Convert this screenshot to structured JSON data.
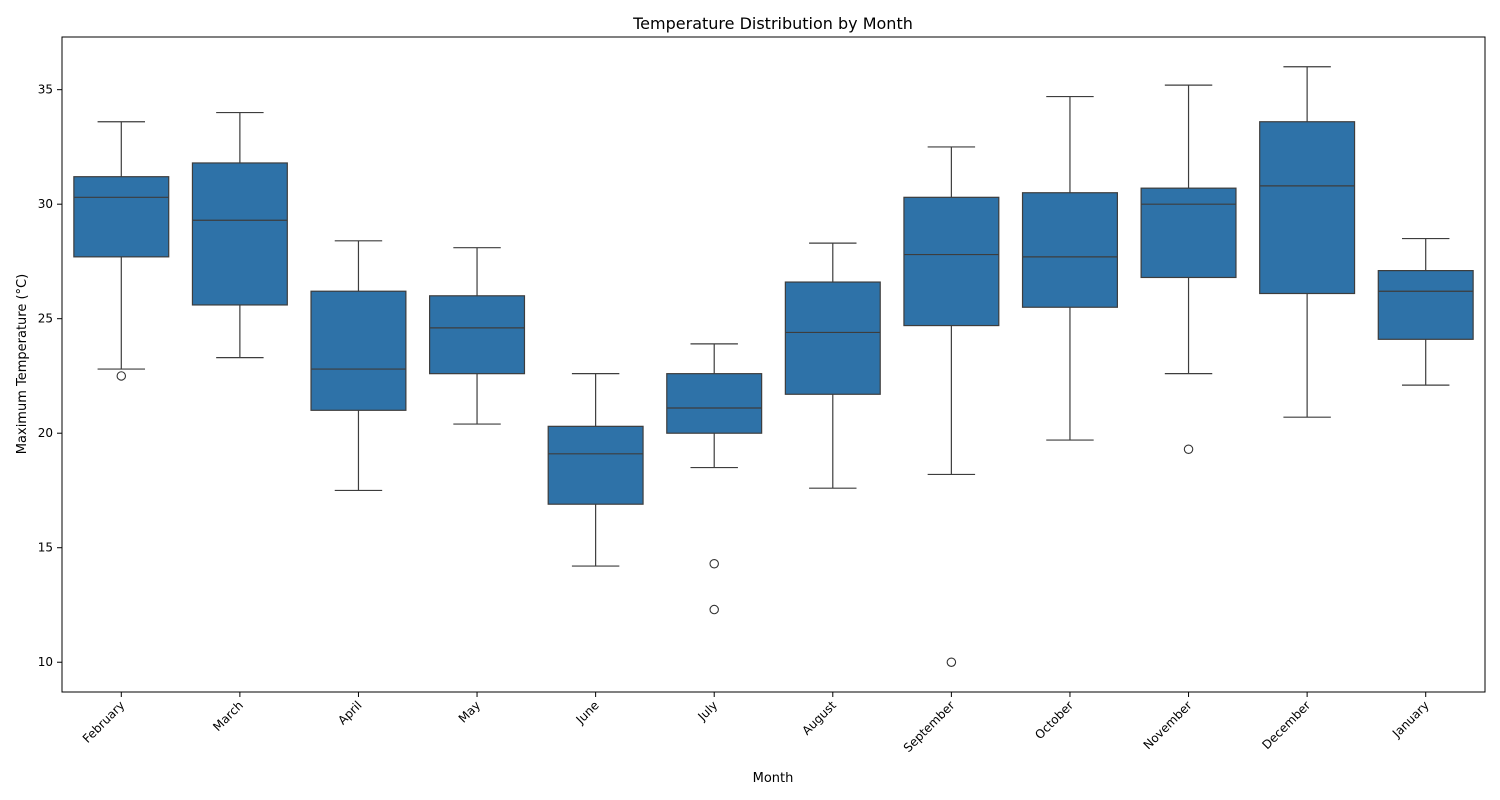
{
  "chart_data": {
    "type": "box",
    "title": "Temperature Distribution by Month",
    "xlabel": "Month",
    "ylabel": "Maximum Temperature (°C)",
    "ylim": [
      8.7,
      37.3
    ],
    "yticks": [
      10,
      15,
      20,
      25,
      30,
      35
    ],
    "grid": false,
    "legend": "none",
    "box_color": "#2e72a8",
    "line_color": "#3d3d3d",
    "categories": [
      "February",
      "March",
      "April",
      "May",
      "June",
      "July",
      "August",
      "September",
      "October",
      "November",
      "December",
      "January"
    ],
    "boxes": [
      {
        "whisker_low": 22.8,
        "q1": 27.7,
        "median": 30.3,
        "q3": 31.2,
        "whisker_high": 33.6,
        "outliers": [
          22.5
        ]
      },
      {
        "whisker_low": 23.3,
        "q1": 25.6,
        "median": 29.3,
        "q3": 31.8,
        "whisker_high": 34.0,
        "outliers": []
      },
      {
        "whisker_low": 17.5,
        "q1": 21.0,
        "median": 22.8,
        "q3": 26.2,
        "whisker_high": 28.4,
        "outliers": []
      },
      {
        "whisker_low": 20.4,
        "q1": 22.6,
        "median": 24.6,
        "q3": 26.0,
        "whisker_high": 28.1,
        "outliers": []
      },
      {
        "whisker_low": 14.2,
        "q1": 16.9,
        "median": 19.1,
        "q3": 20.3,
        "whisker_high": 22.6,
        "outliers": []
      },
      {
        "whisker_low": 18.5,
        "q1": 20.0,
        "median": 21.1,
        "q3": 22.6,
        "whisker_high": 23.9,
        "outliers": [
          14.3,
          12.3
        ]
      },
      {
        "whisker_low": 17.6,
        "q1": 21.7,
        "median": 24.4,
        "q3": 26.6,
        "whisker_high": 28.3,
        "outliers": []
      },
      {
        "whisker_low": 18.2,
        "q1": 24.7,
        "median": 27.8,
        "q3": 30.3,
        "whisker_high": 32.5,
        "outliers": [
          10.0
        ]
      },
      {
        "whisker_low": 19.7,
        "q1": 25.5,
        "median": 27.7,
        "q3": 30.5,
        "whisker_high": 34.7,
        "outliers": []
      },
      {
        "whisker_low": 22.6,
        "q1": 26.8,
        "median": 30.0,
        "q3": 30.7,
        "whisker_high": 35.2,
        "outliers": [
          19.3
        ]
      },
      {
        "whisker_low": 20.7,
        "q1": 26.1,
        "median": 30.8,
        "q3": 33.6,
        "whisker_high": 36.0,
        "outliers": []
      },
      {
        "whisker_low": 22.1,
        "q1": 24.1,
        "median": 26.2,
        "q3": 27.1,
        "whisker_high": 28.5,
        "outliers": []
      }
    ]
  }
}
